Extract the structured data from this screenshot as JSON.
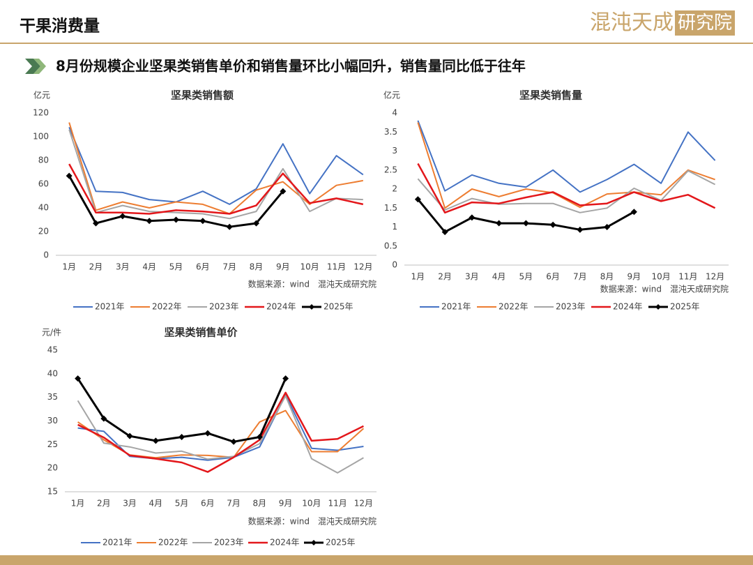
{
  "header": {
    "title": "干果消费量",
    "logo_left": "混沌天成",
    "logo_right": "研究院"
  },
  "subtitle": "8月份规模企业坚果类销售单价和销售量环比小幅回升，销售量同比低于往年",
  "chart_data": [
    {
      "type": "line",
      "title": "坚果类销售额",
      "unit": "亿元",
      "source": "数据来源：wind　混沌天成研究院",
      "categories": [
        "1月",
        "2月",
        "3月",
        "4月",
        "5月",
        "6月",
        "7月",
        "8月",
        "9月",
        "10月",
        "11月",
        "12月"
      ],
      "ylim": [
        0,
        120
      ],
      "yticks": [
        0,
        20,
        40,
        60,
        80,
        100,
        120
      ],
      "legend": "bottom",
      "series": [
        {
          "name": "2021年",
          "color": "#4472c4",
          "values": [
            108,
            54,
            53,
            47,
            45,
            54,
            43,
            56,
            94,
            52,
            84,
            68
          ]
        },
        {
          "name": "2022年",
          "color": "#ed7d31",
          "values": [
            112,
            38,
            45,
            40,
            45,
            43,
            35,
            55,
            62,
            43,
            59,
            63
          ]
        },
        {
          "name": "2023年",
          "color": "#a5a5a5",
          "values": [
            106,
            36,
            42,
            37,
            36,
            35,
            31,
            37,
            73,
            37,
            48,
            47
          ]
        },
        {
          "name": "2024年",
          "color": "#e3171b",
          "values": [
            77,
            36,
            36,
            35,
            38,
            37,
            35,
            42,
            69,
            44,
            48,
            43
          ]
        },
        {
          "name": "2025年",
          "color": "#000000",
          "marker": "diamond",
          "values": [
            67,
            27,
            33,
            29,
            30,
            29,
            24,
            27,
            54,
            null,
            null,
            null
          ]
        }
      ]
    },
    {
      "type": "line",
      "title": "坚果类销售量",
      "unit": "亿元",
      "source": "数据来源：wind　混沌天成研究院",
      "categories": [
        "1月",
        "2月",
        "3月",
        "4月",
        "5月",
        "6月",
        "7月",
        "8月",
        "9月",
        "10月",
        "11月",
        "12月"
      ],
      "ylim": [
        0,
        4
      ],
      "yticks": [
        0,
        0.5,
        1,
        1.5,
        2,
        2.5,
        3,
        3.5,
        4
      ],
      "legend": "bottom",
      "series": [
        {
          "name": "2021年",
          "color": "#4472c4",
          "values": [
            3.8,
            1.95,
            2.37,
            2.15,
            2.05,
            2.5,
            1.92,
            2.25,
            2.65,
            2.15,
            3.5,
            2.75
          ]
        },
        {
          "name": "2022年",
          "color": "#ed7d31",
          "values": [
            3.75,
            1.5,
            2.0,
            1.8,
            2.0,
            1.9,
            1.52,
            1.87,
            1.92,
            1.85,
            2.5,
            2.25
          ]
        },
        {
          "name": "2023年",
          "color": "#a5a5a5",
          "values": [
            2.27,
            1.45,
            1.75,
            1.6,
            1.62,
            1.62,
            1.38,
            1.5,
            2.02,
            1.7,
            2.48,
            2.12
          ]
        },
        {
          "name": "2024年",
          "color": "#e3171b",
          "values": [
            2.67,
            1.38,
            1.65,
            1.62,
            1.78,
            1.92,
            1.57,
            1.62,
            1.92,
            1.68,
            1.85,
            1.5
          ]
        },
        {
          "name": "2025年",
          "color": "#000000",
          "marker": "diamond",
          "values": [
            1.73,
            0.87,
            1.25,
            1.1,
            1.1,
            1.06,
            0.93,
            1.0,
            1.4,
            null,
            null,
            null
          ]
        }
      ]
    },
    {
      "type": "line",
      "title": "坚果类销售单价",
      "unit": "元/件",
      "source": "数据来源：wind　混沌天成研究院",
      "categories": [
        "1月",
        "2月",
        "3月",
        "4月",
        "5月",
        "6月",
        "7月",
        "8月",
        "9月",
        "10月",
        "11月",
        "12月"
      ],
      "ylim": [
        15,
        45
      ],
      "yticks": [
        15,
        20,
        25,
        30,
        35,
        40,
        45
      ],
      "legend": "bottom",
      "series": [
        {
          "name": "2021年",
          "color": "#4472c4",
          "values": [
            28.5,
            27.8,
            22.5,
            22,
            22.3,
            21.7,
            22.3,
            24.5,
            35.5,
            24.2,
            23.8,
            24.6
          ]
        },
        {
          "name": "2022年",
          "color": "#ed7d31",
          "values": [
            29.8,
            26,
            22.8,
            22.2,
            22.8,
            22.7,
            22.3,
            29.8,
            32.2,
            23.5,
            23.5,
            28.4
          ]
        },
        {
          "name": "2023年",
          "color": "#a5a5a5",
          "values": [
            34.3,
            25.3,
            24.5,
            23.2,
            23.6,
            21.9,
            22.5,
            25.2,
            35.3,
            22,
            19,
            22.2
          ]
        },
        {
          "name": "2024年",
          "color": "#e3171b",
          "values": [
            29.2,
            26.5,
            22.7,
            22,
            21.2,
            19.2,
            22.3,
            26,
            36,
            25.8,
            26.2,
            28.9
          ]
        },
        {
          "name": "2025年",
          "color": "#000000",
          "marker": "diamond",
          "values": [
            39,
            30.5,
            26.8,
            25.8,
            26.6,
            27.4,
            25.6,
            26.6,
            39,
            null,
            null,
            null
          ]
        }
      ]
    }
  ]
}
